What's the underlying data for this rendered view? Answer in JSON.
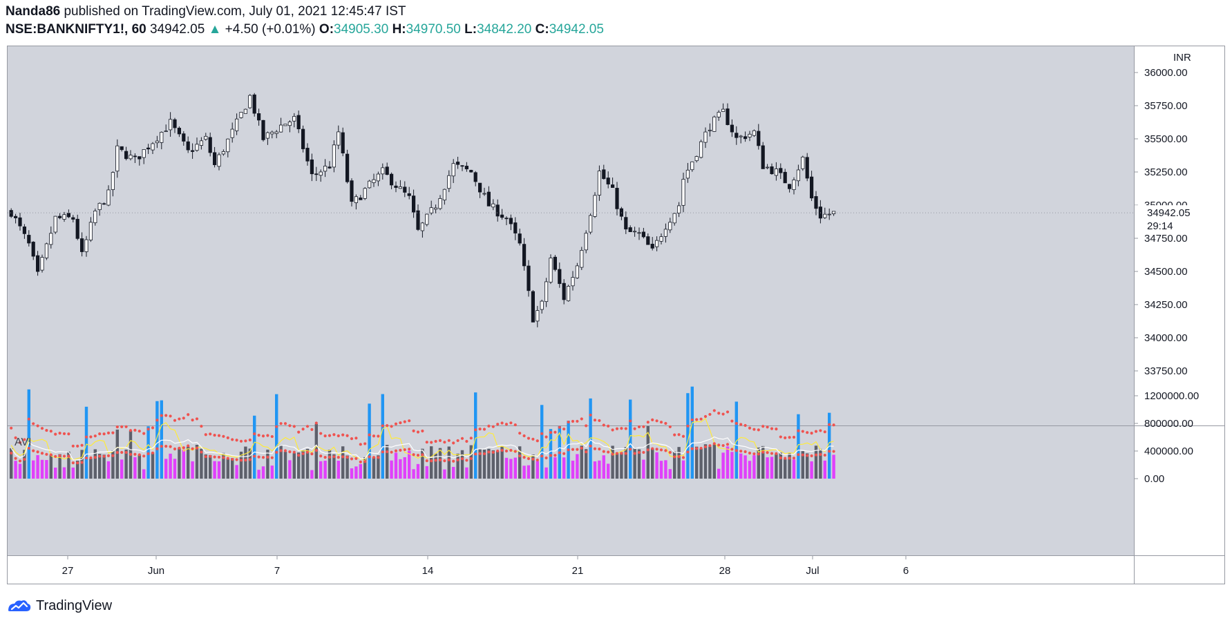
{
  "header": {
    "author": "Nanda86",
    "published_text": "published on TradingView.com, July 01, 2021 12:45:47 IST",
    "symbol": "NSE:BANKNIFTY1!, 60",
    "last": "34942.05",
    "up_arrow": "▲",
    "change": "+4.50 (+0.01%)",
    "o_label": "O:",
    "o_value": "34905.30",
    "h_label": "H:",
    "h_value": "34970.50",
    "l_label": "L:",
    "l_value": "34842.20",
    "c_label": "C:",
    "c_value": "34942.05"
  },
  "price_axis": {
    "currency": "INR",
    "ticks": [
      "36000.00",
      "35750.00",
      "35500.00",
      "35250.00",
      "35000.00",
      "34750.00",
      "34500.00",
      "34250.00",
      "34000.00",
      "33750.00"
    ],
    "current_price": "34942.05",
    "countdown": "29:14"
  },
  "indicator": {
    "name": "AVI",
    "ticks": [
      "1200000.00",
      "800000.00",
      "400000.00",
      "0.00"
    ]
  },
  "time_axis": {
    "ticks": [
      "27",
      "Jun",
      "7",
      "14",
      "21",
      "28",
      "Jul",
      "6"
    ]
  },
  "footer": {
    "brand": "TradingView"
  },
  "colors": {
    "background": "#d1d4dc",
    "up_candle": "#ffffff",
    "down_candle": "#131722",
    "vol_gray": "#5d606b",
    "vol_blue": "#2196f3",
    "vol_magenta": "#e040fb",
    "band_red": "#ef5350",
    "ma_yellow": "#ffeb3b",
    "ma_white": "#ffffff",
    "accent_green": "#26a69a"
  },
  "chart_data": [
    {
      "type": "candlestick",
      "title": "NSE:BANKNIFTY1!, 60",
      "ylabel": "INR",
      "ylim": [
        33750,
        36000
      ],
      "x_ticks": [
        "27",
        "Jun",
        "7",
        "14",
        "21",
        "28",
        "Jul",
        "6"
      ],
      "waypoints": [
        {
          "bar": 0,
          "price": 34950
        },
        {
          "bar": 4,
          "price": 34700
        },
        {
          "bar": 6,
          "price": 34470
        },
        {
          "bar": 10,
          "price": 34900
        },
        {
          "bar": 14,
          "price": 34900
        },
        {
          "bar": 16,
          "price": 34620
        },
        {
          "bar": 19,
          "price": 34950
        },
        {
          "bar": 22,
          "price": 35080
        },
        {
          "bar": 24,
          "price": 35420
        },
        {
          "bar": 28,
          "price": 35340
        },
        {
          "bar": 32,
          "price": 35480
        },
        {
          "bar": 36,
          "price": 35620
        },
        {
          "bar": 40,
          "price": 35400
        },
        {
          "bar": 44,
          "price": 35500
        },
        {
          "bar": 46,
          "price": 35300
        },
        {
          "bar": 50,
          "price": 35550
        },
        {
          "bar": 54,
          "price": 35820
        },
        {
          "bar": 57,
          "price": 35500
        },
        {
          "bar": 61,
          "price": 35600
        },
        {
          "bar": 64,
          "price": 35650
        },
        {
          "bar": 68,
          "price": 35220
        },
        {
          "bar": 72,
          "price": 35300
        },
        {
          "bar": 74,
          "price": 35550
        },
        {
          "bar": 77,
          "price": 35000
        },
        {
          "bar": 81,
          "price": 35150
        },
        {
          "bar": 84,
          "price": 35250
        },
        {
          "bar": 87,
          "price": 35150
        },
        {
          "bar": 90,
          "price": 35050
        },
        {
          "bar": 92,
          "price": 34800
        },
        {
          "bar": 96,
          "price": 35000
        },
        {
          "bar": 100,
          "price": 35300
        },
        {
          "bar": 104,
          "price": 35250
        },
        {
          "bar": 108,
          "price": 35000
        },
        {
          "bar": 112,
          "price": 34900
        },
        {
          "bar": 115,
          "price": 34700
        },
        {
          "bar": 118,
          "price": 34150
        },
        {
          "bar": 120,
          "price": 34250
        },
        {
          "bar": 122,
          "price": 34600
        },
        {
          "bar": 125,
          "price": 34300
        },
        {
          "bar": 128,
          "price": 34550
        },
        {
          "bar": 131,
          "price": 34950
        },
        {
          "bar": 133,
          "price": 35250
        },
        {
          "bar": 136,
          "price": 35100
        },
        {
          "bar": 139,
          "price": 34800
        },
        {
          "bar": 142,
          "price": 34780
        },
        {
          "bar": 145,
          "price": 34650
        },
        {
          "bar": 148,
          "price": 34850
        },
        {
          "bar": 151,
          "price": 35000
        },
        {
          "bar": 152,
          "price": 35200
        },
        {
          "bar": 155,
          "price": 35400
        },
        {
          "bar": 158,
          "price": 35600
        },
        {
          "bar": 161,
          "price": 35700
        },
        {
          "bar": 164,
          "price": 35500
        },
        {
          "bar": 168,
          "price": 35550
        },
        {
          "bar": 170,
          "price": 35300
        },
        {
          "bar": 173,
          "price": 35250
        },
        {
          "bar": 176,
          "price": 35150
        },
        {
          "bar": 179,
          "price": 35350
        },
        {
          "bar": 181,
          "price": 35050
        },
        {
          "bar": 183,
          "price": 34920
        },
        {
          "bar": 186,
          "price": 34940
        }
      ],
      "current_price": 34942.05
    },
    {
      "type": "bar",
      "title": "AVI",
      "ylim": [
        0,
        1400000
      ],
      "y_ticks": [
        0,
        400000,
        800000,
        1200000
      ],
      "color_rule": "blue when volume exceeds upper band, magenta when below lower band, gray otherwise"
    }
  ]
}
